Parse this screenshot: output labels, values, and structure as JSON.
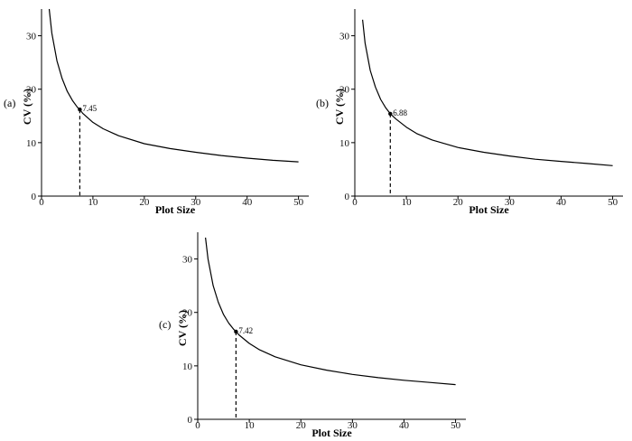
{
  "chart_data": [
    {
      "type": "line",
      "panel_label": "(a)",
      "xlabel": "Plot Size",
      "ylabel": "CV (%)",
      "xlim": [
        0,
        52
      ],
      "ylim": [
        0,
        35
      ],
      "xticks": [
        0,
        10,
        20,
        30,
        40,
        50
      ],
      "yticks": [
        0,
        10,
        20,
        30
      ],
      "curve": {
        "x": [
          1.5,
          2,
          3,
          4,
          5,
          6,
          7,
          7.45,
          8,
          10,
          12,
          15,
          20,
          25,
          30,
          35,
          40,
          45,
          50
        ],
        "y": [
          35,
          30.5,
          25.3,
          22.0,
          19.6,
          17.9,
          16.6,
          16.2,
          15.5,
          13.8,
          12.6,
          11.3,
          9.8,
          8.9,
          8.2,
          7.6,
          7.1,
          6.7,
          6.4
        ]
      },
      "optimum": {
        "x": 7.45,
        "y": 16.2,
        "label": "7.45"
      }
    },
    {
      "type": "line",
      "panel_label": "(b)",
      "xlabel": "Plot Size",
      "ylabel": "CV (%)",
      "xlim": [
        0,
        52
      ],
      "ylim": [
        0,
        35
      ],
      "xticks": [
        0,
        10,
        20,
        30,
        40,
        50
      ],
      "yticks": [
        0,
        10,
        20,
        30
      ],
      "curve": {
        "x": [
          1.5,
          2,
          3,
          4,
          5,
          6,
          6.88,
          8,
          10,
          12,
          15,
          20,
          25,
          30,
          35,
          40,
          45,
          50
        ],
        "y": [
          33,
          28.6,
          23.5,
          20.4,
          18.1,
          16.5,
          15.4,
          14.4,
          12.9,
          11.7,
          10.5,
          9.1,
          8.2,
          7.5,
          6.9,
          6.5,
          6.1,
          5.7
        ]
      },
      "optimum": {
        "x": 6.88,
        "y": 15.4,
        "label": "6.88"
      }
    },
    {
      "type": "line",
      "panel_label": "(c)",
      "xlabel": "Plot Size",
      "ylabel": "CV (%)",
      "xlim": [
        0,
        52
      ],
      "ylim": [
        0,
        35
      ],
      "xticks": [
        0,
        10,
        20,
        30,
        40,
        50
      ],
      "yticks": [
        0,
        10,
        20,
        30
      ],
      "curve": {
        "x": [
          1.5,
          2,
          3,
          4,
          5,
          6,
          7,
          7.42,
          8,
          10,
          12,
          15,
          20,
          25,
          30,
          35,
          40,
          45,
          50
        ],
        "y": [
          34,
          30.0,
          25.0,
          21.9,
          19.6,
          18.0,
          16.8,
          16.4,
          15.8,
          14.2,
          13.0,
          11.7,
          10.2,
          9.2,
          8.4,
          7.8,
          7.3,
          6.9,
          6.5
        ]
      },
      "optimum": {
        "x": 7.42,
        "y": 16.4,
        "label": "7.42"
      }
    }
  ]
}
